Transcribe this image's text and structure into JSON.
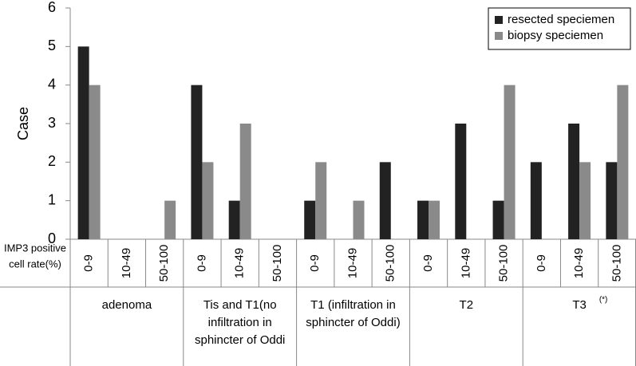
{
  "chart_data": {
    "type": "bar",
    "y_label": "Case",
    "x_row_label": [
      "IMP3 positive",
      "cell rate(%)"
    ],
    "categories": [
      "0-9",
      "10-49",
      "50-100",
      "0-9",
      "10-49",
      "50-100",
      "0-9",
      "10-49",
      "50-100",
      "0-9",
      "10-49",
      "50-100",
      "0-9",
      "10-49",
      "50-100"
    ],
    "groups": [
      {
        "label": [
          "adenoma"
        ]
      },
      {
        "label": [
          "Tis and T1(no",
          "infiltration in",
          "sphincter of Oddi"
        ]
      },
      {
        "label": [
          "T1 (infiltration in",
          "sphincter of Oddi)"
        ]
      },
      {
        "label": [
          "T2"
        ]
      },
      {
        "label": [
          "T3"
        ],
        "annotation": "(*)"
      }
    ],
    "series": [
      {
        "name": "resected speciemen",
        "color": "#222222",
        "values": [
          5,
          0,
          0,
          4,
          1,
          0,
          1,
          0,
          2,
          1,
          3,
          1,
          2,
          3,
          2
        ]
      },
      {
        "name": "biopsy speciemen",
        "color": "#8a8a8a",
        "values": [
          4,
          0,
          1,
          2,
          3,
          0,
          2,
          1,
          0,
          1,
          0,
          4,
          0,
          2,
          4
        ]
      }
    ],
    "ylim": [
      0,
      6
    ],
    "yticks": [
      0,
      1,
      2,
      3,
      4,
      5,
      6
    ],
    "legend": "upper right"
  }
}
